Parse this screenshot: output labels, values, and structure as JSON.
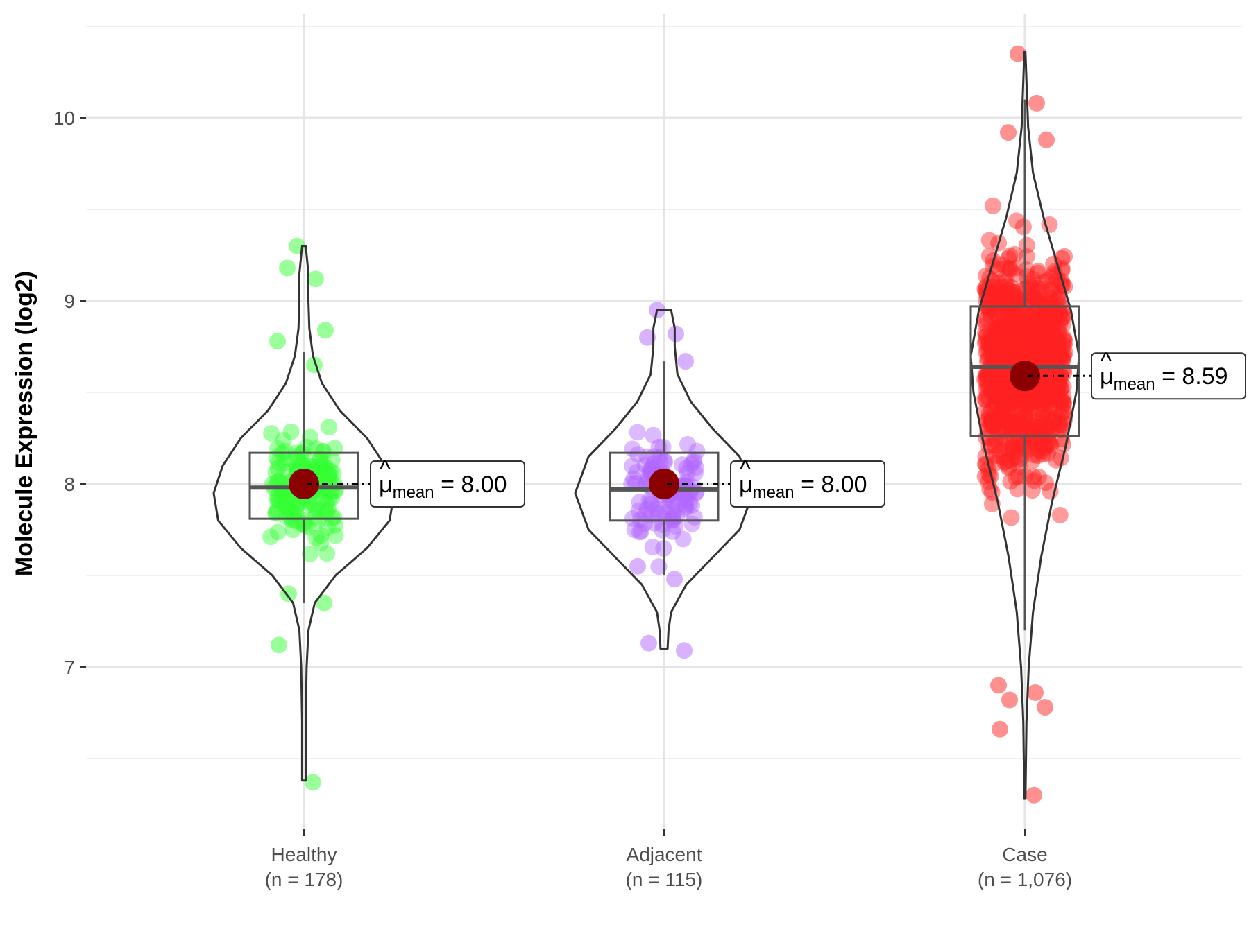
{
  "chart_data": {
    "type": "violin",
    "ylabel": "Molecule Expression (log2)",
    "xlabel": "",
    "ylim": [
      6.1,
      10.55
    ],
    "yticks": [
      7,
      8,
      9,
      10
    ],
    "grid": true,
    "mean_symbol": "μ",
    "mean_subscript": "mean",
    "groups": [
      {
        "name": "Healthy",
        "n_label": "(n = 178)",
        "color": "#33ff33",
        "mean": 8.0,
        "mean_label": "8.00",
        "box": {
          "q1": 7.81,
          "median": 7.98,
          "q3": 8.17,
          "whisker_low": 7.35,
          "whisker_high": 8.72
        },
        "violin_range": [
          6.38,
          9.3
        ],
        "density": [
          [
            6.38,
            0.02
          ],
          [
            6.7,
            0.02
          ],
          [
            7.0,
            0.03
          ],
          [
            7.2,
            0.05
          ],
          [
            7.35,
            0.12
          ],
          [
            7.5,
            0.35
          ],
          [
            7.65,
            0.7
          ],
          [
            7.8,
            0.95
          ],
          [
            7.95,
            1.0
          ],
          [
            8.1,
            0.9
          ],
          [
            8.25,
            0.7
          ],
          [
            8.4,
            0.4
          ],
          [
            8.55,
            0.2
          ],
          [
            8.7,
            0.1
          ],
          [
            8.85,
            0.06
          ],
          [
            9.0,
            0.05
          ],
          [
            9.15,
            0.05
          ],
          [
            9.3,
            0.02
          ]
        ],
        "outliers": [
          9.3,
          9.12,
          9.18,
          8.84,
          8.78,
          8.65,
          7.4,
          7.35,
          7.12,
          6.37
        ]
      },
      {
        "name": "Adjacent",
        "n_label": "(n = 115)",
        "color": "#b266ff",
        "mean": 8.0,
        "mean_label": "8.00",
        "box": {
          "q1": 7.8,
          "median": 7.97,
          "q3": 8.17,
          "whisker_low": 7.5,
          "whisker_high": 8.67
        },
        "violin_range": [
          7.1,
          8.95
        ],
        "density": [
          [
            7.1,
            0.04
          ],
          [
            7.2,
            0.05
          ],
          [
            7.3,
            0.08
          ],
          [
            7.45,
            0.25
          ],
          [
            7.6,
            0.55
          ],
          [
            7.75,
            0.85
          ],
          [
            7.95,
            1.0
          ],
          [
            8.15,
            0.85
          ],
          [
            8.3,
            0.55
          ],
          [
            8.45,
            0.3
          ],
          [
            8.6,
            0.15
          ],
          [
            8.75,
            0.12
          ],
          [
            8.85,
            0.12
          ],
          [
            8.95,
            0.08
          ]
        ],
        "outliers": [
          8.95,
          8.82,
          8.8,
          8.67,
          7.55,
          7.48,
          7.13,
          7.09
        ]
      },
      {
        "name": "Case",
        "n_label": "(n = 1,076)",
        "color": "#ff2222",
        "mean": 8.59,
        "mean_label": "8.59",
        "box": {
          "q1": 8.26,
          "median": 8.64,
          "q3": 8.97,
          "whisker_low": 7.2,
          "whisker_high": 10.1
        },
        "violin_range": [
          6.28,
          10.36
        ],
        "density": [
          [
            6.28,
            0.01
          ],
          [
            6.7,
            0.03
          ],
          [
            7.0,
            0.07
          ],
          [
            7.3,
            0.15
          ],
          [
            7.6,
            0.3
          ],
          [
            7.9,
            0.5
          ],
          [
            8.2,
            0.75
          ],
          [
            8.5,
            0.95
          ],
          [
            8.7,
            1.0
          ],
          [
            8.95,
            0.85
          ],
          [
            9.2,
            0.6
          ],
          [
            9.45,
            0.35
          ],
          [
            9.7,
            0.15
          ],
          [
            9.95,
            0.06
          ],
          [
            10.2,
            0.03
          ],
          [
            10.36,
            0.01
          ]
        ],
        "outliers": [
          10.35,
          10.08,
          9.92,
          9.88,
          6.9,
          6.86,
          6.82,
          6.78,
          6.66,
          6.3
        ]
      }
    ]
  }
}
